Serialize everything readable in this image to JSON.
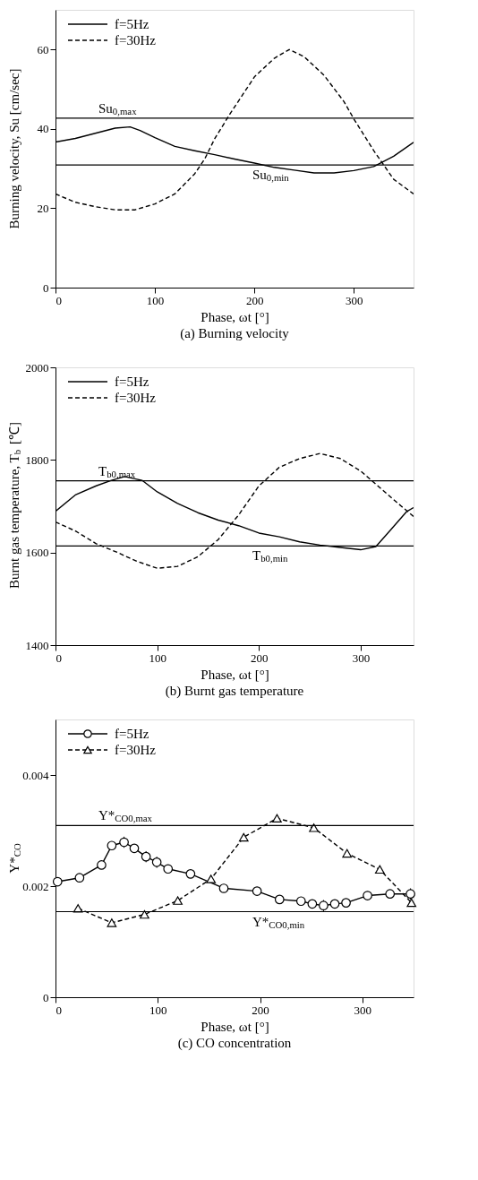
{
  "chart_data": [
    {
      "type": "line",
      "title": "(a) Burning velocity",
      "xlabel": "Phase, ωt [°]",
      "ylabel": "Burning velocity, Su [cm/sec]",
      "xlim": [
        0,
        360
      ],
      "ylim": [
        0,
        70
      ],
      "xticks": [
        0,
        100,
        200,
        300
      ],
      "yticks": [
        0,
        20,
        40,
        60
      ],
      "grid": false,
      "legend": "top left",
      "marker": "none",
      "series": [
        {
          "name": "f=5Hz",
          "color": "#000000",
          "line_style": "solid",
          "x": [
            0,
            20,
            40,
            60,
            75,
            85,
            100,
            120,
            140,
            160,
            180,
            200,
            220,
            240,
            260,
            280,
            300,
            320,
            340,
            360
          ],
          "values": [
            36.7,
            37.6,
            38.9,
            40.2,
            40.5,
            39.6,
            37.8,
            35.6,
            34.5,
            33.5,
            32.4,
            31.4,
            30.3,
            29.6,
            28.9,
            28.9,
            29.5,
            30.5,
            33.1,
            36.6
          ]
        },
        {
          "name": "f=30Hz",
          "color": "#000000",
          "line_style": "dashed",
          "x": [
            0,
            20,
            40,
            60,
            80,
            100,
            120,
            140,
            150,
            160,
            175,
            200,
            220,
            235,
            250,
            270,
            290,
            300,
            320,
            330,
            340,
            360
          ],
          "values": [
            23.6,
            21.5,
            20.4,
            19.6,
            19.6,
            21.1,
            23.6,
            28.7,
            32.4,
            37.5,
            43.6,
            53.1,
            57.8,
            60.0,
            58.2,
            53.5,
            46.9,
            42.5,
            34.5,
            30.9,
            27.3,
            23.6
          ]
        }
      ],
      "ref_lines": [
        {
          "axis": "y",
          "value": 42.7,
          "label": "Su$_{0,max}$",
          "color": "#000000"
        },
        {
          "axis": "y",
          "value": 30.9,
          "label": "Su$_{0,min}$",
          "color": "#000000"
        }
      ]
    },
    {
      "type": "line",
      "title": "(b) Burnt gas temperature",
      "xlabel": "Phase, ωt [°]",
      "ylabel": "Burnt gas temperature, T$_{b}$ [℃]",
      "xlim": [
        0,
        352
      ],
      "ylim": [
        1400,
        2000
      ],
      "xticks": [
        0,
        100,
        200,
        300
      ],
      "yticks": [
        1400,
        1600,
        1800,
        2000
      ],
      "grid": false,
      "legend": "top left",
      "marker": "none",
      "series": [
        {
          "name": "f=5Hz",
          "color": "#000000",
          "line_style": "solid",
          "x": [
            0,
            20,
            40,
            55,
            68,
            85,
            100,
            120,
            140,
            160,
            180,
            200,
            220,
            240,
            260,
            280,
            300,
            315,
            330,
            345,
            352
          ],
          "values": [
            1689,
            1725,
            1744,
            1756,
            1764,
            1756,
            1731,
            1706,
            1686,
            1670,
            1658,
            1642,
            1634,
            1623,
            1616,
            1611,
            1606,
            1613,
            1650,
            1688,
            1697
          ]
        },
        {
          "name": "f=30Hz",
          "color": "#000000",
          "line_style": "dashed",
          "x": [
            0,
            20,
            40,
            60,
            80,
            100,
            120,
            140,
            160,
            180,
            200,
            220,
            240,
            260,
            280,
            300,
            320,
            340,
            352
          ],
          "values": [
            1666,
            1646,
            1619,
            1601,
            1581,
            1566,
            1570,
            1591,
            1628,
            1681,
            1744,
            1784,
            1803,
            1814,
            1803,
            1776,
            1738,
            1700,
            1678
          ]
        }
      ],
      "ref_lines": [
        {
          "axis": "y",
          "value": 1755,
          "label": "T$_{b0,max}$",
          "color": "#000000"
        },
        {
          "axis": "y",
          "value": 1614,
          "label": "T$_{b0,min}$",
          "color": "#000000"
        }
      ]
    },
    {
      "type": "line",
      "title": "(c) CO concentration",
      "xlabel": "Phase, ωt [°]",
      "ylabel": "Y*$_{CO}$",
      "xlim": [
        0,
        350
      ],
      "ylim": [
        0,
        0.005
      ],
      "xticks": [
        0,
        100,
        200,
        300
      ],
      "yticks": [
        0,
        0.002,
        0.004
      ],
      "grid": false,
      "legend": "top left",
      "series": [
        {
          "name": "f=5Hz",
          "color": "#000000",
          "line_style": "solid",
          "marker": "circle",
          "x": [
            2,
            23.5,
            45,
            55,
            67,
            77,
            88.5,
            99,
            110,
            132,
            164.5,
            197,
            219,
            240,
            251,
            262,
            273,
            284,
            305,
            327,
            347
          ],
          "values": [
            0.00208,
            0.00215,
            0.00238,
            0.00273,
            0.00279,
            0.00268,
            0.00253,
            0.00243,
            0.00231,
            0.00222,
            0.00196,
            0.00191,
            0.00176,
            0.00173,
            0.00168,
            0.00165,
            0.00168,
            0.0017,
            0.00183,
            0.00186,
            0.00186
          ],
          "errors": [
            null,
            null,
            null,
            null,
            0.0001,
            null,
            0.0001,
            0.0001,
            null,
            null,
            null,
            null,
            null,
            null,
            null,
            0.0001,
            null,
            null,
            null,
            null,
            0.0001
          ]
        },
        {
          "name": "f=30Hz",
          "color": "#000000",
          "line_style": "dashed",
          "marker": "triangle",
          "x": [
            22,
            55,
            87,
            119.5,
            152,
            184,
            216.5,
            252.5,
            285,
            317,
            348
          ],
          "values": [
            0.0016,
            0.00134,
            0.00149,
            0.00174,
            0.00213,
            0.00288,
            0.00322,
            0.00305,
            0.00259,
            0.0023,
            0.0017
          ]
        }
      ],
      "ref_lines": [
        {
          "axis": "y",
          "value": 0.00309,
          "label": "Y*$_{CO0,max}$",
          "color": "#000000"
        },
        {
          "axis": "y",
          "value": 0.00154,
          "label": "Y*$_{CO0,min}$",
          "color": "#000000"
        }
      ]
    }
  ]
}
